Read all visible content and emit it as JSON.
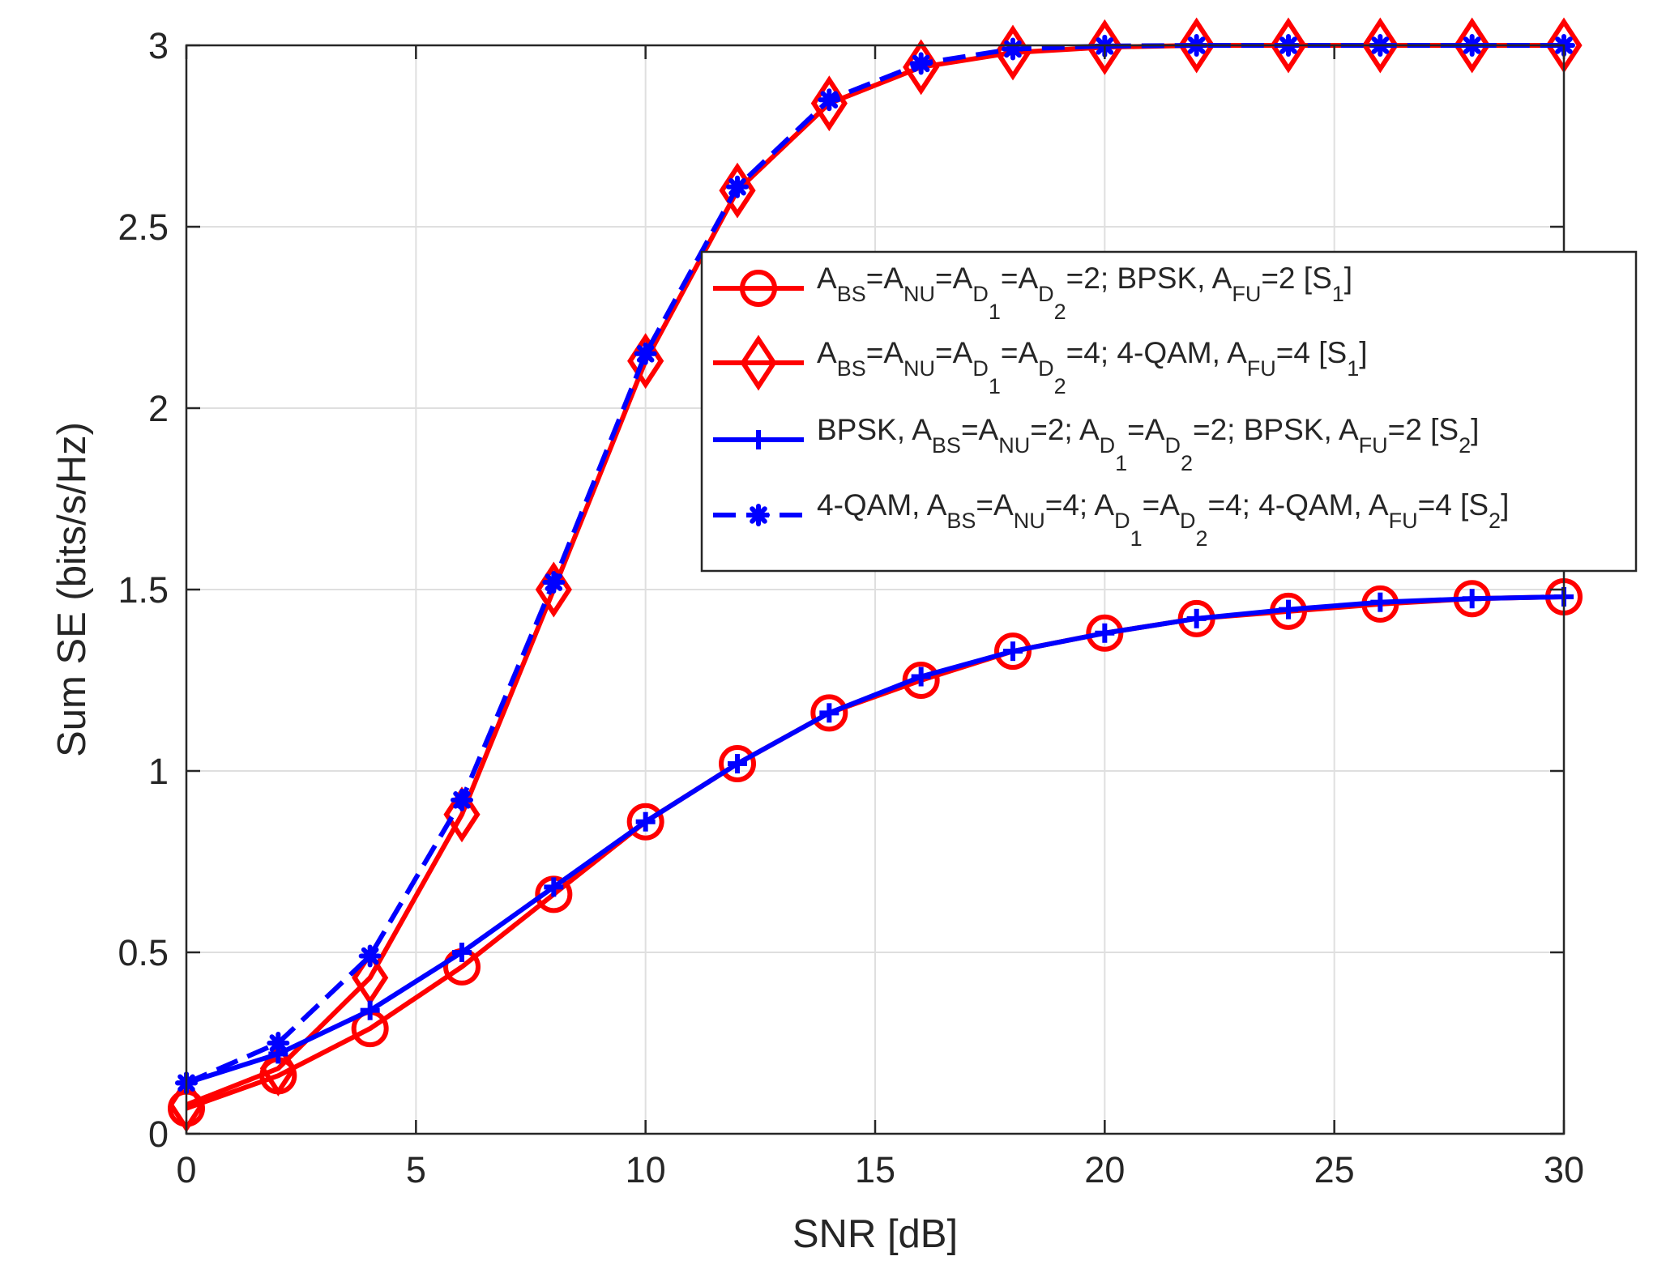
{
  "chart_data": {
    "type": "line",
    "title": "",
    "xlabel": "SNR [dB]",
    "ylabel": "Sum SE (bits/s/Hz)",
    "xlim": [
      0,
      30
    ],
    "ylim": [
      0,
      3
    ],
    "xticks": [
      0,
      5,
      10,
      15,
      20,
      25,
      30
    ],
    "xtick_labels": [
      "0",
      "5",
      "10",
      "15",
      "20",
      "25",
      "30"
    ],
    "yticks": [
      0,
      0.5,
      1,
      1.5,
      2,
      2.5,
      3
    ],
    "ytick_labels": [
      "0",
      "0.5",
      "1",
      "1.5",
      "2",
      "2.5",
      "3"
    ],
    "grid": true,
    "legend_position": "center-right",
    "x": [
      0,
      2,
      4,
      6,
      8,
      10,
      12,
      14,
      16,
      18,
      20,
      22,
      24,
      26,
      28,
      30
    ],
    "series": [
      {
        "id": "s1-bpsk",
        "name": "A_BS=A_NU=A_D1=A_D2=2; BPSK, A_FU=2 [S_1]",
        "color": "#ff0000",
        "marker": "circle",
        "dash": "solid",
        "legend_parts": [
          {
            "t": "A",
            "s": "n"
          },
          {
            "t": "BS",
            "s": "sub"
          },
          {
            "t": "=A",
            "s": "n"
          },
          {
            "t": "NU",
            "s": "sub"
          },
          {
            "t": "=A",
            "s": "n"
          },
          {
            "t": "D",
            "s": "sub"
          },
          {
            "t": "1",
            "s": "subsub"
          },
          {
            "t": "=A",
            "s": "n"
          },
          {
            "t": "D",
            "s": "sub"
          },
          {
            "t": "2",
            "s": "subsub"
          },
          {
            "t": "=2; BPSK, A",
            "s": "n"
          },
          {
            "t": "FU",
            "s": "sub"
          },
          {
            "t": "=2 [S",
            "s": "n"
          },
          {
            "t": "1",
            "s": "sub"
          },
          {
            "t": "]",
            "s": "n"
          }
        ],
        "values": [
          0.07,
          0.16,
          0.29,
          0.46,
          0.66,
          0.86,
          1.02,
          1.16,
          1.25,
          1.33,
          1.38,
          1.42,
          1.44,
          1.46,
          1.475,
          1.48
        ]
      },
      {
        "id": "s1-4qam",
        "name": "A_BS=A_NU=A_D1=A_D2=4; 4-QAM, A_FU=4 [S_1]",
        "color": "#ff0000",
        "marker": "diamond",
        "dash": "solid",
        "legend_parts": [
          {
            "t": "A",
            "s": "n"
          },
          {
            "t": "BS",
            "s": "sub"
          },
          {
            "t": "=A",
            "s": "n"
          },
          {
            "t": "NU",
            "s": "sub"
          },
          {
            "t": "=A",
            "s": "n"
          },
          {
            "t": "D",
            "s": "sub"
          },
          {
            "t": "1",
            "s": "subsub"
          },
          {
            "t": "=A",
            "s": "n"
          },
          {
            "t": "D",
            "s": "sub"
          },
          {
            "t": "2",
            "s": "subsub"
          },
          {
            "t": "=4; 4-QAM, A",
            "s": "n"
          },
          {
            "t": "FU",
            "s": "sub"
          },
          {
            "t": "=4 [S",
            "s": "n"
          },
          {
            "t": "1",
            "s": "sub"
          },
          {
            "t": "]",
            "s": "n"
          }
        ],
        "values": [
          0.08,
          0.18,
          0.43,
          0.88,
          1.5,
          2.13,
          2.6,
          2.84,
          2.94,
          2.98,
          2.995,
          3.0,
          3.0,
          3.0,
          3.0,
          3.0
        ]
      },
      {
        "id": "s2-bpsk",
        "name": "BPSK, A_BS=A_NU=2; A_D1=A_D2=2; BPSK, A_FU=2 [S_2]",
        "color": "#0000ff",
        "marker": "plus",
        "dash": "solid",
        "legend_parts": [
          {
            "t": "BPSK, A",
            "s": "n"
          },
          {
            "t": "BS",
            "s": "sub"
          },
          {
            "t": "=A",
            "s": "n"
          },
          {
            "t": "NU",
            "s": "sub"
          },
          {
            "t": "=2; A",
            "s": "n"
          },
          {
            "t": "D",
            "s": "sub"
          },
          {
            "t": "1",
            "s": "subsub"
          },
          {
            "t": "=A",
            "s": "n"
          },
          {
            "t": "D",
            "s": "sub"
          },
          {
            "t": "2",
            "s": "subsub"
          },
          {
            "t": "=2; BPSK, A",
            "s": "n"
          },
          {
            "t": "FU",
            "s": "sub"
          },
          {
            "t": "=2 [S",
            "s": "n"
          },
          {
            "t": "2",
            "s": "sub"
          },
          {
            "t": "]",
            "s": "n"
          }
        ],
        "values": [
          0.14,
          0.22,
          0.34,
          0.5,
          0.68,
          0.86,
          1.02,
          1.16,
          1.26,
          1.33,
          1.38,
          1.42,
          1.445,
          1.465,
          1.475,
          1.48
        ]
      },
      {
        "id": "s2-4qam",
        "name": "4-QAM, A_BS=A_NU=4; A_D1=A_D2=4; 4-QAM, A_FU=4 [S_2]",
        "color": "#0000ff",
        "marker": "star",
        "dash": "dashed",
        "legend_parts": [
          {
            "t": "4-QAM, A",
            "s": "n"
          },
          {
            "t": "BS",
            "s": "sub"
          },
          {
            "t": "=A",
            "s": "n"
          },
          {
            "t": "NU",
            "s": "sub"
          },
          {
            "t": "=4; A",
            "s": "n"
          },
          {
            "t": "D",
            "s": "sub"
          },
          {
            "t": "1",
            "s": "subsub"
          },
          {
            "t": "=A",
            "s": "n"
          },
          {
            "t": "D",
            "s": "sub"
          },
          {
            "t": "2",
            "s": "subsub"
          },
          {
            "t": "=4; 4-QAM, A",
            "s": "n"
          },
          {
            "t": "FU",
            "s": "sub"
          },
          {
            "t": "=4 [S",
            "s": "n"
          },
          {
            "t": "2",
            "s": "sub"
          },
          {
            "t": "]",
            "s": "n"
          }
        ],
        "values": [
          0.14,
          0.25,
          0.49,
          0.92,
          1.52,
          2.15,
          2.61,
          2.85,
          2.95,
          2.99,
          2.998,
          3.0,
          3.0,
          3.0,
          3.0,
          3.0
        ]
      }
    ]
  }
}
